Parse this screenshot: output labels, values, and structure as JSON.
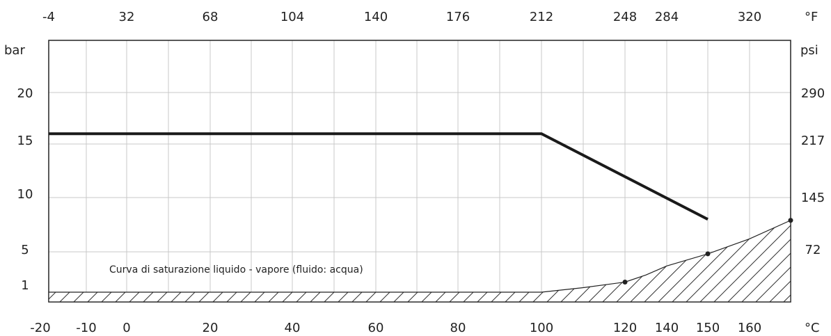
{
  "chart_data": {
    "type": "line",
    "units": {
      "left": "bar",
      "right": "psi",
      "top": "°F",
      "bottom": "°C"
    },
    "x_ticks_celsius": [
      "-20",
      "-10",
      "0",
      "20",
      "40",
      "60",
      "80",
      "100",
      "120",
      "140",
      "150",
      "160"
    ],
    "x_ticks_fahrenheit": [
      "-4",
      "32",
      "68",
      "104",
      "140",
      "176",
      "212",
      "248",
      "284",
      "320"
    ],
    "y_ticks_bar": [
      "1",
      "5",
      "10",
      "15",
      "20"
    ],
    "y_ticks_psi": [
      "72",
      "145",
      "217",
      "290"
    ],
    "series": [
      {
        "x": [
          -20,
          100,
          150
        ],
        "y": [
          16,
          16,
          8
        ]
      }
    ],
    "saturation_curve": {
      "label": "Curva di saturazione liquido - vapore (fluido: acqua)",
      "x": [
        -20,
        0,
        40,
        80,
        100,
        110,
        120,
        130,
        140,
        150,
        160,
        170
      ],
      "y": [
        0,
        0,
        0,
        0,
        0.05,
        0.45,
        1.0,
        1.7,
        2.6,
        3.8,
        5.2,
        6.9
      ],
      "points": [
        {
          "x": 120,
          "y": 1.0
        },
        {
          "x": 150,
          "y": 3.8
        },
        {
          "x": 170,
          "y": 6.9
        }
      ]
    },
    "xlim_celsius": [
      -20,
      170
    ],
    "ylim_bar": [
      0,
      25
    ],
    "grid": true
  }
}
